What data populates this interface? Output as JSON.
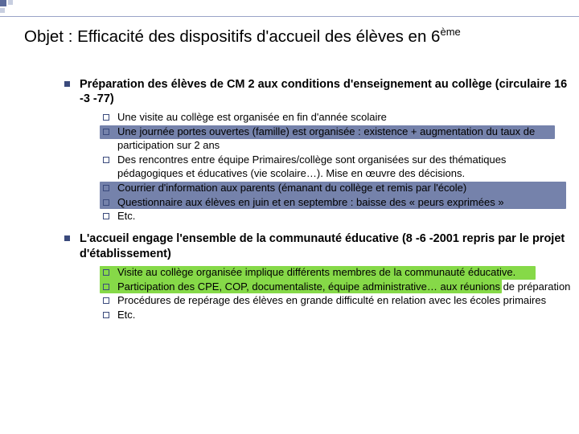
{
  "colors": {
    "highlight_blue": "#7582ab",
    "highlight_green": "#86d948",
    "bullet_fill": "#3a4a7c"
  },
  "title_prefix": "Objet : Efficacité des dispositifs d'accueil des élèves en 6",
  "title_suffix": "ème",
  "sections": [
    {
      "heading": "Préparation des élèves de CM 2 aux conditions d'enseignement au collège (circulaire 16 -3 -77)",
      "items": [
        {
          "text": "Une visite au collège est organisée en fin d'année scolaire",
          "hl": null
        },
        {
          "text": "Une journée portes ouvertes (famille) est organisée : existence + augmentation du taux de participation sur 2 ans",
          "hl": "blue_top"
        },
        {
          "text": "Des rencontres entre équipe Primaires/collège sont organisées sur des thématiques pédagogiques et éducatives (vie scolaire…). Mise en œuvre des décisions.",
          "hl": null
        },
        {
          "text": "Courrier d'information aux parents (émanant du collège et remis par l'école)",
          "hl": null
        },
        {
          "text": "Questionnaire aux élèves en juin et en septembre : baisse des « peurs exprimées »",
          "hl": "blue_full"
        },
        {
          "text": "Etc.",
          "hl": null
        }
      ]
    },
    {
      "heading": "L'accueil engage l'ensemble de la communauté éducative (8 -6 -2001 repris par le projet d'établissement)",
      "items": [
        {
          "text": "Visite au collège organisée implique différents membres de la communauté éducative.",
          "hl": "green_top"
        },
        {
          "text": "Participation des CPE, COP, documentaliste, équipe administrative… aux réunions de préparation",
          "hl": "green_full"
        },
        {
          "text": "Procédures de repérage des élèves en grande difficulté en relation avec les écoles primaires",
          "hl": null
        },
        {
          "text": "Etc.",
          "hl": null
        }
      ]
    }
  ]
}
